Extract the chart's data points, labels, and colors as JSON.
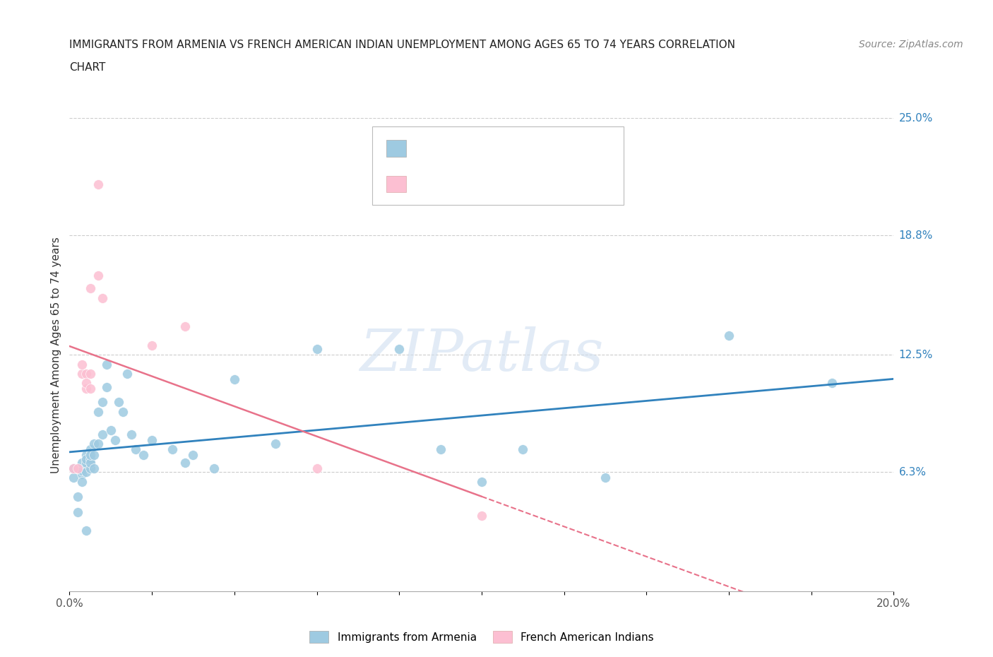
{
  "title_line1": "IMMIGRANTS FROM ARMENIA VS FRENCH AMERICAN INDIAN UNEMPLOYMENT AMONG AGES 65 TO 74 YEARS CORRELATION",
  "title_line2": "CHART",
  "source_text": "Source: ZipAtlas.com",
  "ylabel": "Unemployment Among Ages 65 to 74 years",
  "watermark": "ZIPatlas",
  "xlim": [
    0.0,
    0.2
  ],
  "ylim": [
    0.0,
    0.25
  ],
  "yticks": [
    0.063,
    0.125,
    0.188,
    0.25
  ],
  "ytick_labels": [
    "6.3%",
    "12.5%",
    "18.8%",
    "25.0%"
  ],
  "xticks": [
    0.0,
    0.02,
    0.04,
    0.06,
    0.08,
    0.1,
    0.12,
    0.14,
    0.16,
    0.18,
    0.2
  ],
  "xtick_labels": [
    "0.0%",
    "",
    "",
    "",
    "",
    "",
    "",
    "",
    "",
    "",
    "20.0%"
  ],
  "color_blue": "#9ecae1",
  "color_pink": "#fcbfd2",
  "color_blue_line": "#3182bd",
  "color_pink_line": "#e8728a",
  "color_blue_text": "#3182bd",
  "color_pink_text": "#e8728a",
  "armenia_x": [
    0.001,
    0.001,
    0.002,
    0.002,
    0.003,
    0.003,
    0.003,
    0.003,
    0.004,
    0.004,
    0.004,
    0.004,
    0.004,
    0.005,
    0.005,
    0.005,
    0.005,
    0.005,
    0.006,
    0.006,
    0.006,
    0.007,
    0.007,
    0.008,
    0.008,
    0.009,
    0.009,
    0.01,
    0.011,
    0.012,
    0.013,
    0.014,
    0.015,
    0.016,
    0.018,
    0.02,
    0.025,
    0.028,
    0.03,
    0.035,
    0.04,
    0.05,
    0.06,
    0.08,
    0.09,
    0.1,
    0.11,
    0.13,
    0.16,
    0.185
  ],
  "armenia_y": [
    0.065,
    0.06,
    0.05,
    0.042,
    0.062,
    0.058,
    0.064,
    0.068,
    0.063,
    0.068,
    0.072,
    0.07,
    0.032,
    0.065,
    0.07,
    0.068,
    0.075,
    0.072,
    0.065,
    0.072,
    0.078,
    0.095,
    0.078,
    0.1,
    0.083,
    0.12,
    0.108,
    0.085,
    0.08,
    0.1,
    0.095,
    0.115,
    0.083,
    0.075,
    0.072,
    0.08,
    0.075,
    0.068,
    0.072,
    0.065,
    0.112,
    0.078,
    0.128,
    0.128,
    0.075,
    0.058,
    0.075,
    0.06,
    0.135,
    0.11
  ],
  "french_x": [
    0.001,
    0.002,
    0.003,
    0.003,
    0.004,
    0.004,
    0.004,
    0.005,
    0.005,
    0.005,
    0.007,
    0.007,
    0.008,
    0.02,
    0.028,
    0.06,
    0.1
  ],
  "french_y": [
    0.065,
    0.065,
    0.115,
    0.12,
    0.115,
    0.107,
    0.11,
    0.115,
    0.107,
    0.16,
    0.215,
    0.167,
    0.155,
    0.13,
    0.14,
    0.065,
    0.04
  ]
}
